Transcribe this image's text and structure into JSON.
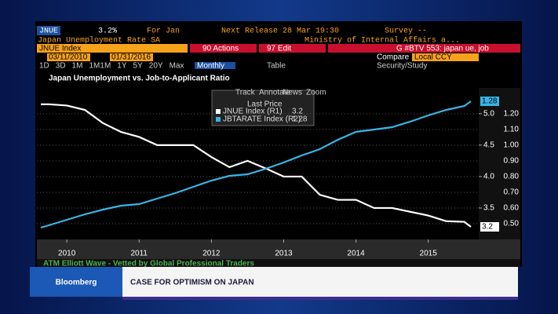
{
  "terminal": {
    "ticker": "JNUE",
    "last": "3.2%",
    "period": "For Jan",
    "next_release": "Next Release 28 Mar 19:30",
    "survey": "Survey --",
    "description": "Japan Unemployment Rate SA",
    "source": "Ministry of Internal Affairs a...",
    "security": "JNUE Index",
    "actions": "90 Actions",
    "edit": "97 Edit",
    "command": "G #BTV 553: japan ue, job",
    "start_date": "03/11/2010",
    "end_date": "01/31/2016",
    "compare": "Compare",
    "currency": "Local CCY",
    "ranges": [
      "1D",
      "3D",
      "1M",
      "1M1M",
      "1Y",
      "5Y",
      "20Y",
      "Max"
    ],
    "frequency": "Monthly",
    "table": "Table",
    "study": "Security/Study",
    "tools": [
      "Track",
      "Annotate",
      "News",
      "Zoom"
    ]
  },
  "chart_data": {
    "type": "line",
    "title": "Japan Unemployment vs. Job-to-Applicant Ratio",
    "legend_title": "Last Price",
    "x": [
      2009.64,
      2009.75,
      2010.0,
      2010.25,
      2010.5,
      2010.75,
      2011.0,
      2011.25,
      2011.5,
      2011.75,
      2012.0,
      2012.25,
      2012.5,
      2012.75,
      2013.0,
      2013.25,
      2013.5,
      2013.75,
      2014.0,
      2014.25,
      2014.5,
      2014.75,
      2015.0,
      2015.25,
      2015.5,
      2015.59
    ],
    "xlim": [
      2009.64,
      2015.59
    ],
    "xticks": [
      2010,
      2011,
      2012,
      2013,
      2014,
      2015
    ],
    "series": [
      {
        "name": "JNUE Index (R1)",
        "color": "#ffffff",
        "values": [
          5.15,
          5.15,
          5.13,
          5.06,
          4.85,
          4.71,
          4.63,
          4.5,
          4.5,
          4.5,
          4.31,
          4.15,
          4.25,
          4.13,
          4.0,
          4.0,
          3.71,
          3.63,
          3.63,
          3.5,
          3.5,
          3.44,
          3.38,
          3.29,
          3.28,
          3.2
        ]
      },
      {
        "name": "JBTARATE Index (R2)",
        "color": "#3ab4e6",
        "axis": "y2",
        "values": [
          0.475,
          0.49,
          0.525,
          0.56,
          0.59,
          0.615,
          0.625,
          0.66,
          0.695,
          0.735,
          0.775,
          0.805,
          0.815,
          0.85,
          0.89,
          0.935,
          0.975,
          1.035,
          1.085,
          1.1,
          1.115,
          1.15,
          1.19,
          1.225,
          1.25,
          1.28
        ]
      }
    ],
    "ylim": [
      3.0,
      5.41
    ],
    "yticks": [
      3.5,
      {
        "value": 4,
        "label": "4.0"
      },
      4.5,
      {
        "value": 5,
        "label": "5.0"
      }
    ],
    "y2lim": [
      0.4,
      1.365
    ],
    "y2ticks": [
      {
        "value": 0.5,
        "label": "0.50"
      },
      {
        "value": 0.6,
        "label": "0.60"
      },
      {
        "value": 0.7,
        "label": "0.70"
      },
      {
        "value": 0.8,
        "label": "0.80"
      },
      {
        "value": 0.9,
        "label": "0.90"
      },
      {
        "value": 1,
        "label": "1.00"
      },
      {
        "value": 1.1,
        "label": "1.10"
      },
      {
        "value": 1.2,
        "label": "1.20"
      }
    ],
    "grid": true
  },
  "ticker_tape": "ATM Elliott Wave - Vetted by Global Professional Traders",
  "brand": "Bloomberg",
  "headline": "CASE FOR OPTIMISM ON JAPAN"
}
